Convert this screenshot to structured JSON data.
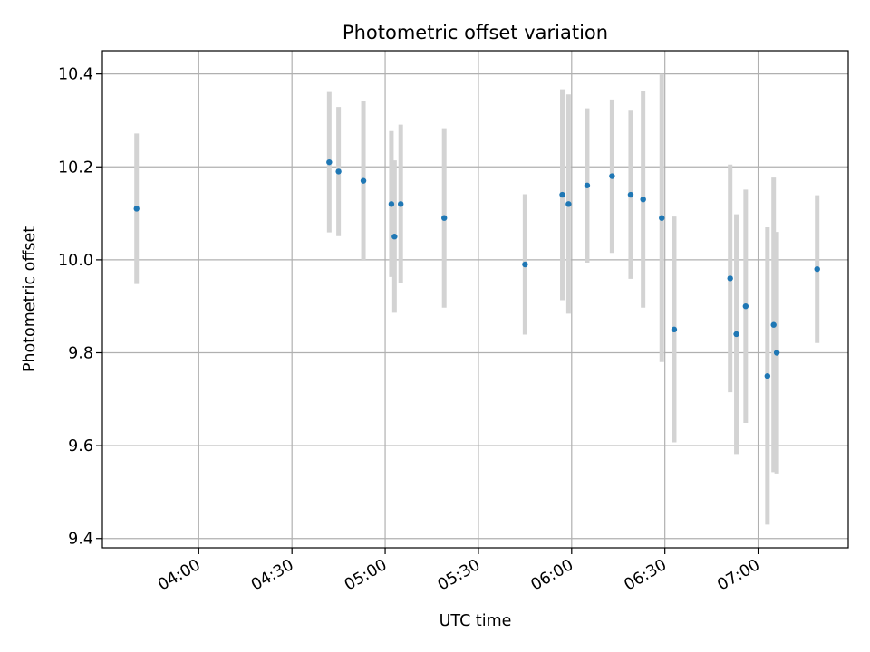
{
  "chart_data": {
    "type": "scatter",
    "title": "Photometric offset variation",
    "xlabel": "UTC time",
    "ylabel": "Photometric offset",
    "xlim": [
      "03:29",
      "07:29"
    ],
    "ylim": [
      9.38,
      10.45
    ],
    "x_ticks": [
      "04:00",
      "04:30",
      "05:00",
      "05:30",
      "06:00",
      "06:30",
      "07:00"
    ],
    "y_ticks": [
      9.4,
      9.6,
      9.8,
      10.0,
      10.2,
      10.4
    ],
    "y_tick_labels": [
      "9.4",
      "9.6",
      "9.8",
      "10.0",
      "10.2",
      "10.4"
    ],
    "grid": true,
    "colors": {
      "point": "#1f77b4",
      "errorbar": "#d3d3d3"
    },
    "series": [
      {
        "points": [
          {
            "x": "03:40",
            "y": 10.11,
            "yerr": 0.162
          },
          {
            "x": "04:42",
            "y": 10.21,
            "yerr": 0.151
          },
          {
            "x": "04:45",
            "y": 10.19,
            "yerr": 0.139
          },
          {
            "x": "04:53",
            "y": 10.17,
            "yerr": 0.172
          },
          {
            "x": "05:02",
            "y": 10.12,
            "yerr": 0.157
          },
          {
            "x": "05:03",
            "y": 10.05,
            "yerr": 0.164
          },
          {
            "x": "05:05",
            "y": 10.12,
            "yerr": 0.171
          },
          {
            "x": "05:19",
            "y": 10.09,
            "yerr": 0.193
          },
          {
            "x": "05:45",
            "y": 9.99,
            "yerr": 0.151
          },
          {
            "x": "05:57",
            "y": 10.14,
            "yerr": 0.227
          },
          {
            "x": "05:59",
            "y": 10.12,
            "yerr": 0.236
          },
          {
            "x": "06:05",
            "y": 10.16,
            "yerr": 0.166
          },
          {
            "x": "06:13",
            "y": 10.18,
            "yerr": 0.165
          },
          {
            "x": "06:19",
            "y": 10.14,
            "yerr": 0.181
          },
          {
            "x": "06:23",
            "y": 10.13,
            "yerr": 0.233
          },
          {
            "x": "06:29",
            "y": 10.09,
            "yerr": 0.31
          },
          {
            "x": "06:33",
            "y": 9.85,
            "yerr": 0.243
          },
          {
            "x": "06:51",
            "y": 9.96,
            "yerr": 0.245
          },
          {
            "x": "06:53",
            "y": 9.84,
            "yerr": 0.258
          },
          {
            "x": "06:56",
            "y": 9.9,
            "yerr": 0.251
          },
          {
            "x": "07:03",
            "y": 9.75,
            "yerr": 0.32
          },
          {
            "x": "07:05",
            "y": 9.86,
            "yerr": 0.317
          },
          {
            "x": "07:06",
            "y": 9.8,
            "yerr": 0.26
          },
          {
            "x": "07:19",
            "y": 9.98,
            "yerr": 0.159
          }
        ]
      }
    ]
  }
}
